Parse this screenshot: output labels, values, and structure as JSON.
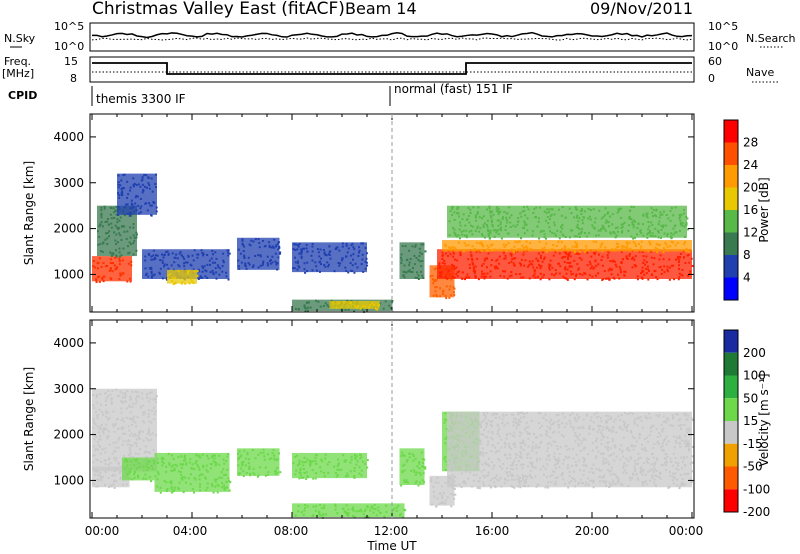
{
  "header": {
    "title": "Christmas Valley East (fitACF)",
    "beam": "Beam 14",
    "date": "09/Nov/2011"
  },
  "nsky_panel": {
    "left_label": "N.Sky",
    "right_label": "N.Search",
    "left_ticks": [
      "10^5",
      "10^0"
    ],
    "right_ticks": [
      "10^5",
      "10^0"
    ]
  },
  "freq_panel": {
    "left_label_1": "Freq.",
    "left_label_2": "[MHz]",
    "right_label": "Nave",
    "left_ticks": [
      "15",
      "8"
    ],
    "right_ticks": [
      "60",
      "0"
    ]
  },
  "cpid_panel": {
    "label": "CPID",
    "mode_1": "themis 3300 IF",
    "mode_2": "normal (fast) 151 IF"
  },
  "power_colorbar": {
    "label": "Power [dB]",
    "ticks": [
      "28",
      "24",
      "20",
      "16",
      "12",
      "8",
      "4"
    ],
    "colors": [
      "#ff0000",
      "#ff5000",
      "#ff9a00",
      "#e8c800",
      "#58b848",
      "#3a7a50",
      "#2040b0",
      "#0000ff"
    ]
  },
  "velocity_colorbar": {
    "label": "Velocity [m s⁻¹]",
    "ticks": [
      "200",
      "100",
      "50",
      "15",
      "-15",
      "-50",
      "-100",
      "-200"
    ],
    "colors": [
      "#1a2aa0",
      "#1f7a35",
      "#2eb040",
      "#6cd84a",
      "#c8c8c8",
      "#f0a000",
      "#ff5a00",
      "#ff0000"
    ]
  },
  "chart_data": {
    "type": "heatmap",
    "xlabel": "Time UT",
    "x_ticks": [
      "00:00",
      "04:00",
      "08:00",
      "12:00",
      "16:00",
      "20:00",
      "00:00"
    ],
    "xlim_hours": [
      0,
      24
    ],
    "ylabel": "Slant Range [km]",
    "y_ticks": [
      1000,
      2000,
      3000,
      4000
    ],
    "ylim_km": [
      180,
      4500
    ],
    "panels": [
      {
        "name": "power",
        "blobs": [
          {
            "t0": 0.0,
            "t1": 1.6,
            "r0": 850,
            "r1": 1400,
            "c": "#ff3000"
          },
          {
            "t0": 0.2,
            "t1": 1.8,
            "r0": 1400,
            "r1": 2500,
            "c": "#3a7a50"
          },
          {
            "t0": 1.0,
            "t1": 2.6,
            "r0": 2300,
            "r1": 3200,
            "c": "#2040b0"
          },
          {
            "t0": 2.0,
            "t1": 5.5,
            "r0": 900,
            "r1": 1550,
            "c": "#2040b0"
          },
          {
            "t0": 3.0,
            "t1": 4.2,
            "r0": 800,
            "r1": 1100,
            "c": "#e8c800"
          },
          {
            "t0": 5.8,
            "t1": 7.5,
            "r0": 1100,
            "r1": 1800,
            "c": "#2040b0"
          },
          {
            "t0": 8.0,
            "t1": 11.0,
            "r0": 1050,
            "r1": 1700,
            "c": "#2040b0"
          },
          {
            "t0": 8.0,
            "t1": 12.0,
            "r0": 200,
            "r1": 450,
            "c": "#3a7a50"
          },
          {
            "t0": 9.5,
            "t1": 11.5,
            "r0": 250,
            "r1": 420,
            "c": "#e8c800"
          },
          {
            "t0": 12.3,
            "t1": 13.3,
            "r0": 900,
            "r1": 1700,
            "c": "#3a7a50"
          },
          {
            "t0": 13.5,
            "t1": 14.5,
            "r0": 500,
            "r1": 1200,
            "c": "#ff6000"
          },
          {
            "t0": 13.8,
            "t1": 24.0,
            "r0": 900,
            "r1": 1550,
            "c": "#ff2000"
          },
          {
            "t0": 14.0,
            "t1": 24.0,
            "r0": 1500,
            "r1": 1750,
            "c": "#ff9a00"
          },
          {
            "t0": 14.2,
            "t1": 23.8,
            "r0": 1800,
            "r1": 2500,
            "c": "#58b848"
          }
        ]
      },
      {
        "name": "velocity",
        "blobs": [
          {
            "t0": 0.0,
            "t1": 2.6,
            "r0": 1200,
            "r1": 3000,
            "c": "#c8c8c8"
          },
          {
            "t0": 0.0,
            "t1": 1.5,
            "r0": 850,
            "r1": 1300,
            "c": "#c8c8c8"
          },
          {
            "t0": 1.2,
            "t1": 2.5,
            "r0": 1000,
            "r1": 1500,
            "c": "#6cd84a"
          },
          {
            "t0": 2.5,
            "t1": 5.5,
            "r0": 750,
            "r1": 1600,
            "c": "#6cd84a"
          },
          {
            "t0": 5.8,
            "t1": 7.5,
            "r0": 1100,
            "r1": 1700,
            "c": "#6cd84a"
          },
          {
            "t0": 8.0,
            "t1": 11.0,
            "r0": 1050,
            "r1": 1600,
            "c": "#6cd84a"
          },
          {
            "t0": 8.0,
            "t1": 12.5,
            "r0": 200,
            "r1": 500,
            "c": "#6cd84a"
          },
          {
            "t0": 12.3,
            "t1": 13.3,
            "r0": 900,
            "r1": 1700,
            "c": "#6cd84a"
          },
          {
            "t0": 13.5,
            "t1": 14.5,
            "r0": 450,
            "r1": 1100,
            "c": "#c8c8c8"
          },
          {
            "t0": 14.0,
            "t1": 15.5,
            "r0": 1200,
            "r1": 2500,
            "c": "#6cd84a"
          },
          {
            "t0": 14.2,
            "t1": 24.0,
            "r0": 850,
            "r1": 2500,
            "c": "#c8c8c8"
          }
        ]
      }
    ]
  }
}
